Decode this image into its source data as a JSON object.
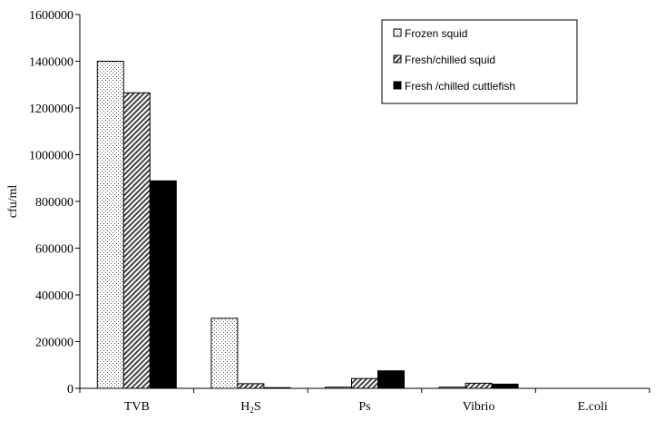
{
  "chart_data": {
    "type": "bar",
    "title": "",
    "xlabel": "",
    "ylabel": "cfu/ml",
    "ylim": [
      0,
      1600000
    ],
    "yticks": [
      0,
      200000,
      400000,
      600000,
      800000,
      1000000,
      1200000,
      1400000,
      1600000
    ],
    "ytick_labels": [
      "0",
      "200000",
      "400000",
      "600000",
      "800000",
      "1000000",
      "1200000",
      "1400000",
      "1600000"
    ],
    "categories": [
      "TVB",
      "H2S",
      "Ps",
      "Vibrio",
      "E.coli"
    ],
    "category_labels": [
      {
        "main": "TVB",
        "sub": "",
        "rest": ""
      },
      {
        "main": "H",
        "sub": "2",
        "rest": "S"
      },
      {
        "main": "Ps",
        "sub": "",
        "rest": ""
      },
      {
        "main": "Vibrio",
        "sub": "",
        "rest": ""
      },
      {
        "main": "E.coli",
        "sub": "",
        "rest": ""
      }
    ],
    "grid": false,
    "legend_position": "top-right",
    "series": [
      {
        "name": "Frozen squid",
        "pattern": "dots",
        "color": "#ffffff",
        "values": [
          1400000,
          300000,
          5000,
          5000,
          0
        ]
      },
      {
        "name": "Fresh/chilled squid",
        "pattern": "diagonal",
        "color": "#bfbfbf",
        "values": [
          1265000,
          20000,
          42000,
          22000,
          0
        ]
      },
      {
        "name": "Fresh /chilled cuttlefish",
        "pattern": "solid",
        "color": "#000000",
        "values": [
          888000,
          3000,
          75000,
          18000,
          0
        ]
      }
    ]
  }
}
